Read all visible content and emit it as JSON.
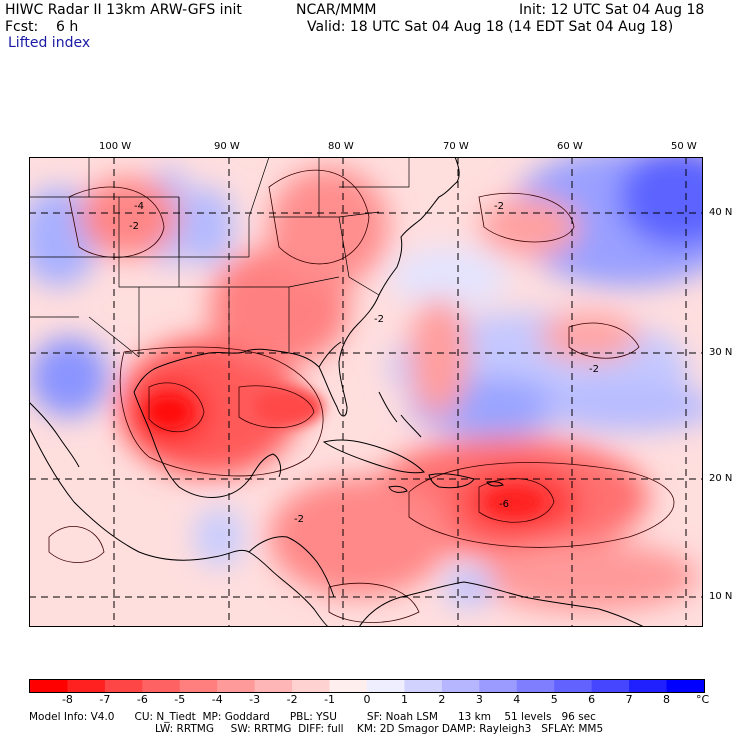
{
  "header": {
    "title": "HIWC Radar II 13km ARW-GFS init",
    "center": "NCAR/MMM",
    "init": "Init: 12 UTC Sat 04 Aug 18",
    "fcst": "Fcst:    6 h",
    "valid": "Valid: 18 UTC Sat 04 Aug 18 (14 EDT Sat 04 Aug 18)",
    "field": "Lifted index"
  },
  "map": {
    "lon_labels": [
      "100 W",
      "90 W",
      "80 W",
      "70 W",
      "60 W",
      "50 W"
    ],
    "lat_labels": [
      "40 N",
      "30 N",
      "20 N",
      "10 N"
    ],
    "contour_labels": [
      "-2",
      "-2",
      "-2",
      "-2",
      "-4",
      "-6",
      "-2"
    ]
  },
  "colorbar": {
    "labels": [
      "-8",
      "-7",
      "-6",
      "-5",
      "-4",
      "-3",
      "-2",
      "-1",
      "0",
      "1",
      "2",
      "3",
      "4",
      "5",
      "6",
      "7",
      "8"
    ],
    "unit": "°C",
    "colors": [
      "#ff0000",
      "#ff2020",
      "#ff4646",
      "#ff6262",
      "#ff7e7e",
      "#ff9a9a",
      "#ffb6b6",
      "#ffd2d2",
      "#ffeeee",
      "#eeeeff",
      "#d2d2ff",
      "#b6b6ff",
      "#9a9aff",
      "#7e7eff",
      "#6262ff",
      "#4646ff",
      "#2020ff",
      "#0000ff"
    ]
  },
  "model_info": {
    "line1": "Model Info: V4.0      CU: N_Tiedt  MP: Goddard      PBL: YSU         SF: Noah LSM      13 km    51 levels   96 sec",
    "line2": "LW: RRTMG     SW: RRTMG  DIFF: full    KM: 2D Smagor DAMP: Rayleigh3   SFLAY: MM5"
  }
}
